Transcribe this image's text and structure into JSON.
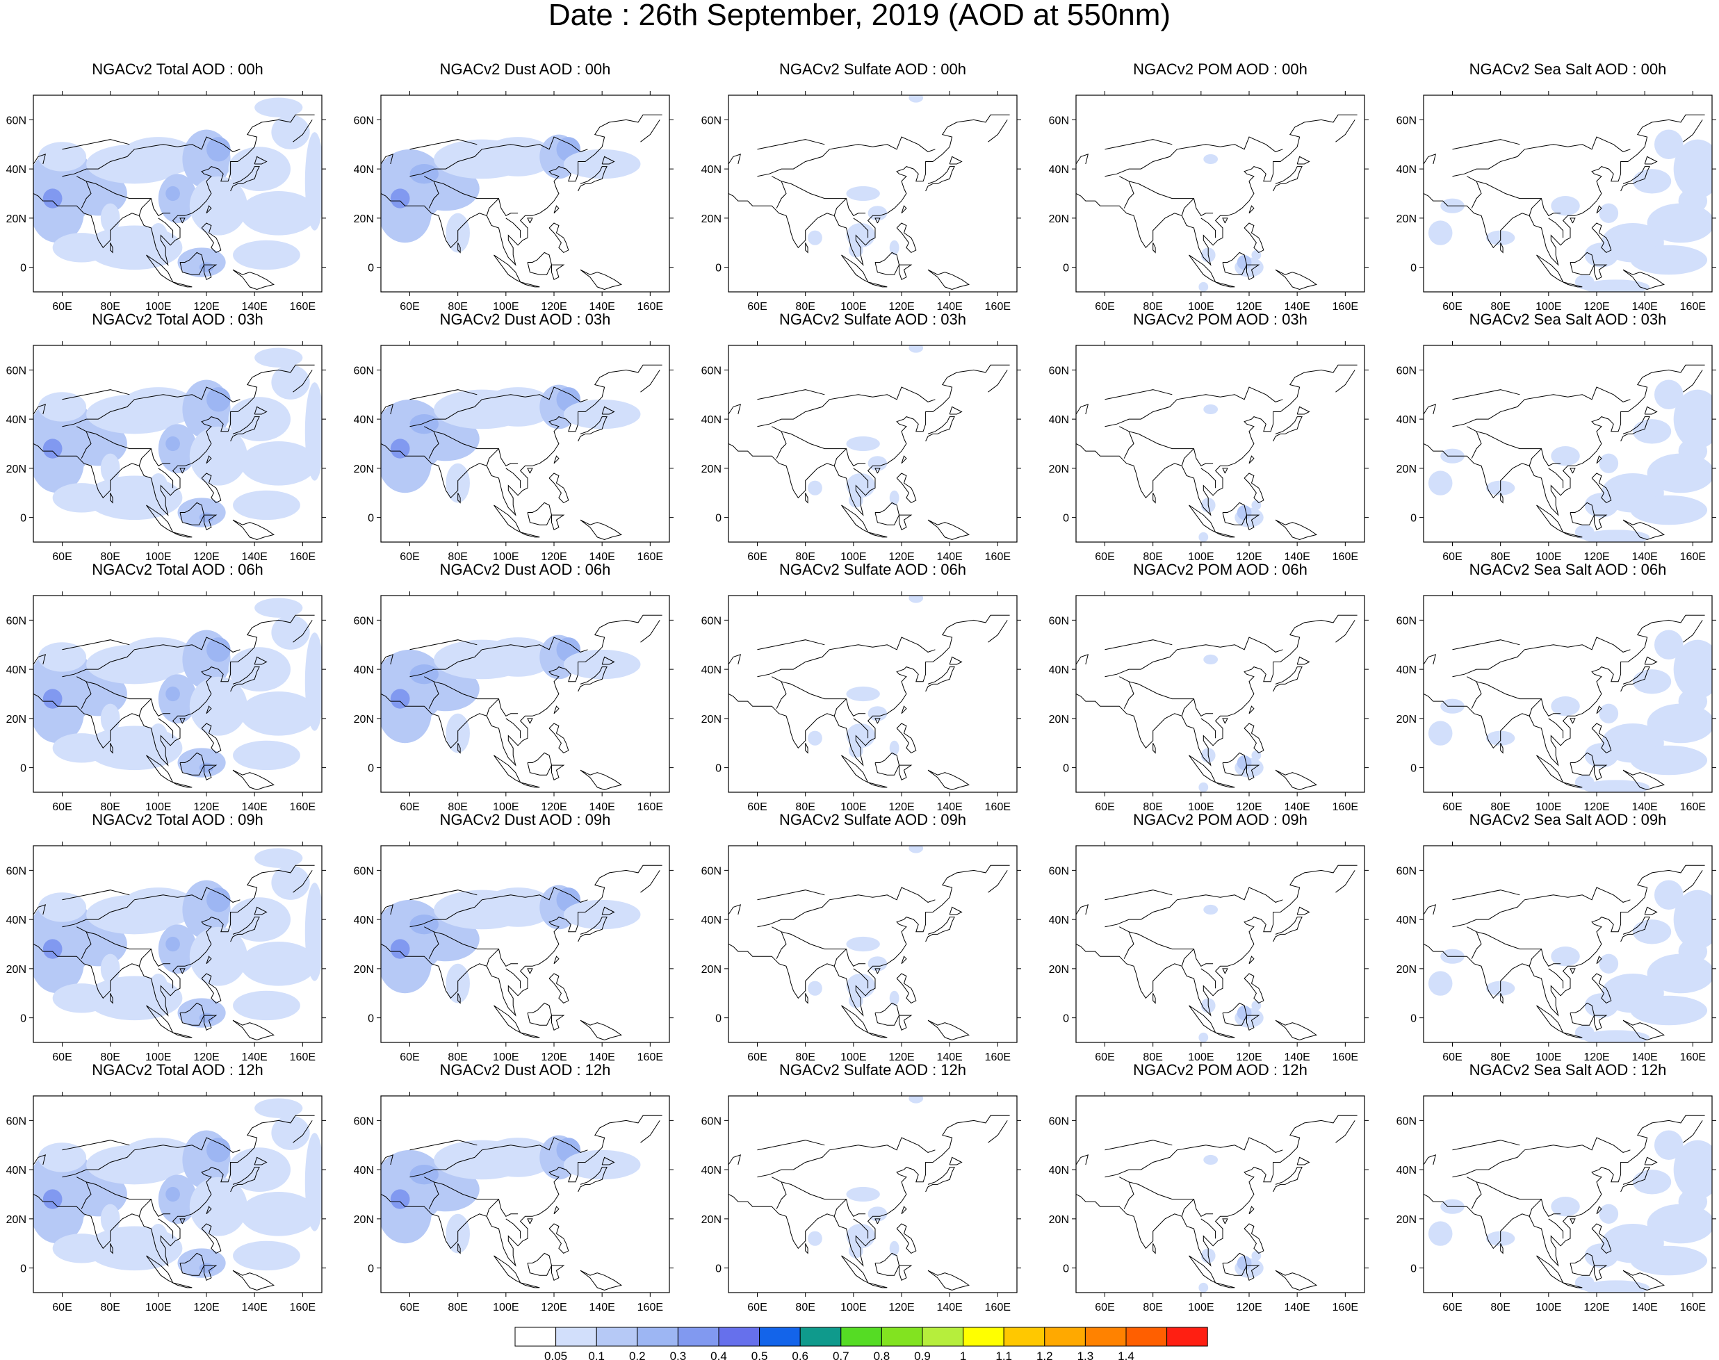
{
  "title": "Date : 26th September, 2019 (AOD at 550nm)",
  "lon_labels": [
    "60E",
    "80E",
    "100E",
    "120E",
    "140E",
    "160E"
  ],
  "lat_labels": [
    "60N",
    "40N",
    "20N",
    "0"
  ],
  "rows": [
    {
      "hour": "00h",
      "titles": [
        "NGACv2 Total AOD : 00h",
        "NGACv2 Dust AOD : 00h",
        "NGACv2 Sulfate AOD : 00h",
        "NGACv2 POM AOD : 00h",
        "NGACv2 Sea Salt AOD : 00h"
      ]
    },
    {
      "hour": "03h",
      "titles": [
        "NGACv2 Total AOD : 03h",
        "NGACv2 Dust AOD : 03h",
        "NGACv2 Sulfate AOD : 03h",
        "NGACv2 POM AOD : 03h",
        "NGACv2 Sea Salt AOD : 03h"
      ]
    },
    {
      "hour": "06h",
      "titles": [
        "NGACv2 Total AOD : 06h",
        "NGACv2 Dust AOD : 06h",
        "NGACv2 Sulfate AOD : 06h",
        "NGACv2 POM AOD : 06h",
        "NGACv2 Sea Salt AOD : 06h"
      ]
    },
    {
      "hour": "09h",
      "titles": [
        "NGACv2 Total AOD : 09h",
        "NGACv2 Dust AOD : 09h",
        "NGACv2 Sulfate AOD : 09h",
        "NGACv2 POM AOD : 09h",
        "NGACv2 Sea Salt  AOD : 09h"
      ]
    },
    {
      "hour": "12h",
      "titles": [
        "NGACv2 Total AOD  : 12h",
        "NGACv2 Dust AOD : 12h",
        "NGACv2 Sulfate AOD : 12h",
        "NGACv2 POM  AOD : 12h",
        "NGACv2 Sea Salt  AOD : 12h"
      ]
    }
  ],
  "colorbar": {
    "colors": [
      "#ffffff",
      "#d2dffb",
      "#b6c9f6",
      "#9db6f3",
      "#8199f0",
      "#6670ec",
      "#1364ea",
      "#0f9a8c",
      "#55dc24",
      "#82e320",
      "#b6ee3c",
      "#ffff00",
      "#ffc800",
      "#ffa900",
      "#ff8200",
      "#ff5f00",
      "#ff1f12"
    ],
    "labels": [
      "0.05",
      "0.1",
      "0.2",
      "0.3",
      "0.4",
      "0.5",
      "0.6",
      "0.7",
      "0.8",
      "0.9",
      "1",
      "1.1",
      "1.2",
      "1.3",
      "1.4"
    ]
  }
}
